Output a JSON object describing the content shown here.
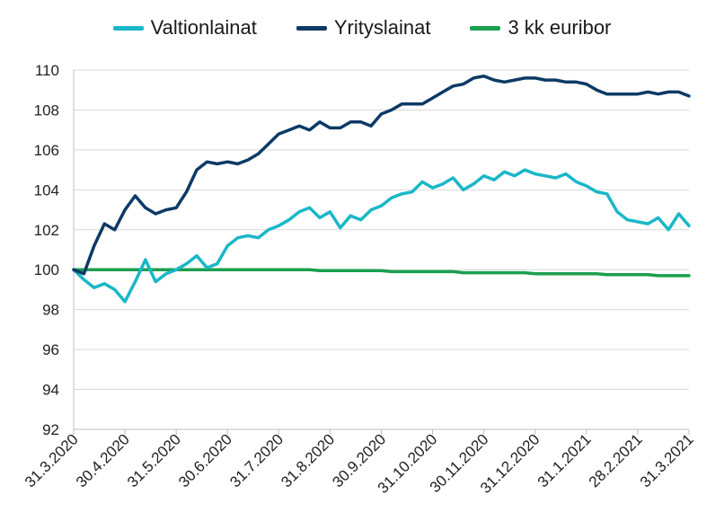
{
  "chart_data": {
    "type": "line",
    "title": "",
    "xlabel": "",
    "ylabel": "",
    "ylim": [
      92,
      110
    ],
    "y_ticks": [
      92,
      94,
      96,
      98,
      100,
      102,
      104,
      106,
      108,
      110
    ],
    "x_ticks": [
      "31.3.2020",
      "30.4.2020",
      "31.5.2020",
      "30.6.2020",
      "31.7.2020",
      "31.8.2020",
      "30.9.2020",
      "31.10.2020",
      "30.11.2020",
      "31.12.2020",
      "31.1.2021",
      "28.2.2021",
      "31.3.2021"
    ],
    "legend_position": "top",
    "grid": true,
    "series": [
      {
        "name": "Valtionlainat",
        "color": "#1ab7c8",
        "values": [
          100.0,
          99.5,
          99.1,
          99.3,
          99.0,
          98.4,
          99.4,
          100.5,
          99.4,
          99.8,
          100.0,
          100.3,
          100.7,
          100.1,
          100.3,
          101.2,
          101.6,
          101.7,
          101.6,
          102.0,
          102.2,
          102.5,
          102.9,
          103.1,
          102.6,
          102.9,
          102.1,
          102.7,
          102.5,
          103.0,
          103.2,
          103.6,
          103.8,
          103.9,
          104.4,
          104.1,
          104.3,
          104.6,
          104.0,
          104.3,
          104.7,
          104.5,
          104.9,
          104.7,
          105.0,
          104.8,
          104.7,
          104.6,
          104.8,
          104.4,
          104.2,
          103.9,
          103.8,
          102.9,
          102.5,
          102.4,
          102.3,
          102.6,
          102.0,
          102.8,
          102.2
        ]
      },
      {
        "name": "Yrityslainat",
        "color": "#0d3a66",
        "values": [
          100.0,
          99.8,
          101.2,
          102.3,
          102.0,
          103.0,
          103.7,
          103.1,
          102.8,
          103.0,
          103.1,
          103.9,
          105.0,
          105.4,
          105.3,
          105.4,
          105.3,
          105.5,
          105.8,
          106.3,
          106.8,
          107.0,
          107.2,
          107.0,
          107.4,
          107.1,
          107.1,
          107.4,
          107.4,
          107.2,
          107.8,
          108.0,
          108.3,
          108.3,
          108.3,
          108.6,
          108.9,
          109.2,
          109.3,
          109.6,
          109.7,
          109.5,
          109.4,
          109.5,
          109.6,
          109.6,
          109.5,
          109.5,
          109.4,
          109.4,
          109.3,
          109.0,
          108.8,
          108.8,
          108.8,
          108.8,
          108.9,
          108.8,
          108.9,
          108.9,
          108.7
        ]
      },
      {
        "name": "3 kk euribor",
        "color": "#1a9f4e",
        "values": [
          100.0,
          100.0,
          100.0,
          100.0,
          100.0,
          100.0,
          100.0,
          100.0,
          100.0,
          100.0,
          100.0,
          100.0,
          100.0,
          100.0,
          100.0,
          100.0,
          100.0,
          100.0,
          100.0,
          100.0,
          100.0,
          100.0,
          100.0,
          100.0,
          99.95,
          99.95,
          99.95,
          99.95,
          99.95,
          99.95,
          99.95,
          99.9,
          99.9,
          99.9,
          99.9,
          99.9,
          99.9,
          99.9,
          99.85,
          99.85,
          99.85,
          99.85,
          99.85,
          99.85,
          99.85,
          99.8,
          99.8,
          99.8,
          99.8,
          99.8,
          99.8,
          99.8,
          99.75,
          99.75,
          99.75,
          99.75,
          99.75,
          99.7,
          99.7,
          99.7,
          99.7
        ]
      }
    ]
  }
}
